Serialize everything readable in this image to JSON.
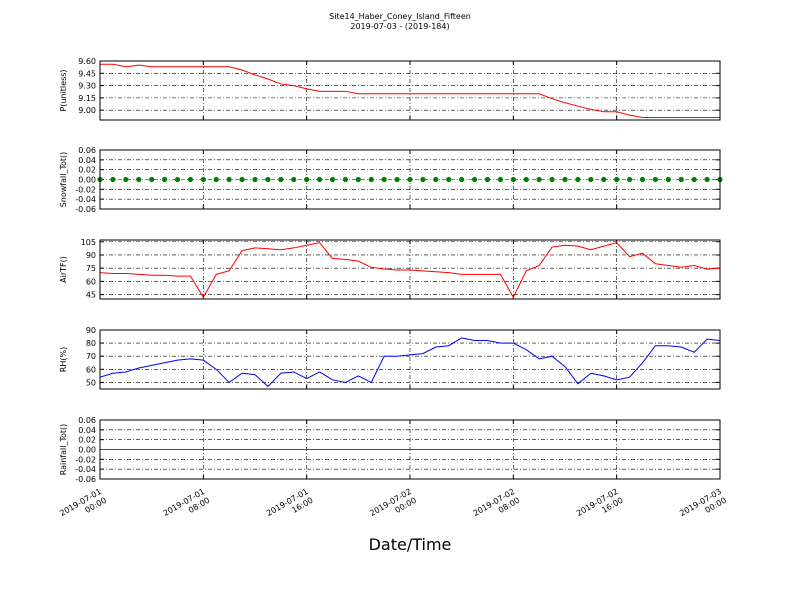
{
  "chart_data": {
    "type": "line",
    "title": "Site14_Haber_Coney_Island_Fifteen",
    "subtitle": "2019-07-03 - (2019-184)",
    "xlabel": "Date/Time",
    "grid": true,
    "xlim": [
      "2019-07-01 00:00",
      "2019-07-03 00:00"
    ],
    "xticks": [
      "2019-07-01 00:00",
      "2019-07-01 08:00",
      "2019-07-01 16:00",
      "2019-07-02 00:00",
      "2019-07-02 08:00",
      "2019-07-02 16:00",
      "2019-07-03 00:00"
    ],
    "x": [
      "2019-07-01 00:00",
      "2019-07-01 01:00",
      "2019-07-01 02:00",
      "2019-07-01 03:00",
      "2019-07-01 04:00",
      "2019-07-01 05:00",
      "2019-07-01 06:00",
      "2019-07-01 07:00",
      "2019-07-01 08:00",
      "2019-07-01 09:00",
      "2019-07-01 10:00",
      "2019-07-01 11:00",
      "2019-07-01 12:00",
      "2019-07-01 13:00",
      "2019-07-01 14:00",
      "2019-07-01 15:00",
      "2019-07-01 16:00",
      "2019-07-01 17:00",
      "2019-07-01 18:00",
      "2019-07-01 19:00",
      "2019-07-01 20:00",
      "2019-07-01 21:00",
      "2019-07-01 22:00",
      "2019-07-01 23:00",
      "2019-07-02 00:00",
      "2019-07-02 01:00",
      "2019-07-02 02:00",
      "2019-07-02 03:00",
      "2019-07-02 04:00",
      "2019-07-02 05:00",
      "2019-07-02 06:00",
      "2019-07-02 07:00",
      "2019-07-02 08:00",
      "2019-07-02 09:00",
      "2019-07-02 10:00",
      "2019-07-02 11:00",
      "2019-07-02 12:00",
      "2019-07-02 13:00",
      "2019-07-02 14:00",
      "2019-07-02 15:00",
      "2019-07-02 16:00",
      "2019-07-02 17:00",
      "2019-07-02 18:00",
      "2019-07-02 19:00",
      "2019-07-02 20:00",
      "2019-07-02 21:00",
      "2019-07-02 22:00",
      "2019-07-02 23:00",
      "2019-07-03 00:00"
    ],
    "panels": [
      {
        "ylabel": "P(unitless)",
        "ylim": [
          8.88,
          9.6
        ],
        "yticks": [
          {
            "value": 9.0,
            "label": "9.00"
          },
          9.15,
          {
            "value": 9.3,
            "label": "9.30"
          },
          9.45,
          {
            "value": 9.6,
            "label": "9.60"
          }
        ],
        "series": [
          {
            "color": "#ff0000",
            "style": "line",
            "values": [
              9.56,
              9.56,
              9.53,
              9.55,
              9.53,
              9.53,
              9.53,
              9.53,
              9.53,
              9.53,
              9.53,
              9.49,
              9.43,
              9.38,
              9.32,
              9.3,
              9.26,
              9.23,
              9.23,
              9.23,
              9.2,
              9.2,
              9.2,
              9.2,
              9.2,
              9.2,
              9.2,
              9.2,
              9.2,
              9.2,
              9.2,
              9.2,
              9.2,
              9.2,
              9.2,
              9.14,
              9.09,
              9.05,
              9.01,
              8.98,
              8.98,
              8.94,
              8.91,
              8.91,
              8.91,
              8.91,
              8.91,
              8.91,
              8.91
            ]
          }
        ]
      },
      {
        "ylabel": "Snowfall_Tot()",
        "ylim": [
          -0.06,
          0.06
        ],
        "yticks": [
          -0.06,
          -0.04,
          -0.02,
          {
            "value": 0,
            "label": "0.00"
          },
          0.02,
          0.04,
          0.06
        ],
        "series": [
          {
            "color": "#008000",
            "style": "markers",
            "values": [
              0,
              0,
              0,
              0,
              0,
              0,
              0,
              0,
              0,
              0,
              0,
              0,
              0,
              0,
              0,
              0,
              0,
              0,
              0,
              0,
              0,
              0,
              0,
              0,
              0,
              0,
              0,
              0,
              0,
              0,
              0,
              0,
              0,
              0,
              0,
              0,
              0,
              0,
              0,
              0,
              0,
              0,
              0,
              0,
              0,
              0,
              0,
              0,
              0
            ]
          }
        ]
      },
      {
        "ylabel": "AirTF()",
        "ylim": [
          40,
          107
        ],
        "yticks": [
          45,
          60,
          75,
          90,
          105
        ],
        "series": [
          {
            "color": "#ff0000",
            "style": "line",
            "values": [
              70,
              69,
              69,
              68,
              67,
              67,
              66,
              66,
              42,
              68,
              72,
              95,
              98,
              97,
              96,
              98,
              101,
              104,
              86,
              85,
              83,
              76,
              74,
              73,
              73,
              72,
              71,
              70,
              68,
              68,
              68,
              68,
              42,
              72,
              78,
              99,
              101,
              100,
              96,
              100,
              104,
              88,
              92,
              80,
              78,
              76,
              78,
              74,
              75
            ]
          }
        ]
      },
      {
        "ylabel": "RH(%)",
        "ylim": [
          45,
          90
        ],
        "yticks": [
          50,
          60,
          70,
          80,
          90
        ],
        "series": [
          {
            "color": "#0000ff",
            "style": "line",
            "values": [
              54,
              57,
              58,
              61,
              63,
              65,
              67,
              68,
              67,
              60,
              50,
              57,
              56,
              47,
              57,
              58,
              53,
              58,
              52,
              50,
              55,
              50,
              70,
              70,
              71,
              72,
              77,
              78,
              84,
              82,
              82,
              80,
              80,
              75,
              68,
              70,
              62,
              49,
              57,
              55,
              52,
              54,
              65,
              78,
              78,
              77,
              73,
              83,
              82
            ]
          }
        ]
      },
      {
        "ylabel": "Rainfall_Tot()",
        "ylim": [
          -0.06,
          0.06
        ],
        "yticks": [
          -0.06,
          -0.04,
          -0.02,
          {
            "value": 0,
            "label": "0.00"
          },
          0.02,
          0.04,
          0.06
        ],
        "series": [
          {
            "color": "#ff0000",
            "style": "line",
            "values": [
              0,
              0,
              0,
              0,
              0,
              0,
              0,
              0,
              0,
              0,
              0,
              0,
              0,
              0,
              0,
              0,
              0,
              0,
              0,
              0,
              0,
              0,
              0,
              0,
              0,
              0,
              0,
              0,
              0,
              0,
              0,
              0,
              0,
              0,
              0,
              0,
              0,
              0,
              0,
              0,
              0,
              0,
              0,
              0,
              0,
              0,
              0,
              0,
              0
            ]
          }
        ]
      }
    ]
  }
}
